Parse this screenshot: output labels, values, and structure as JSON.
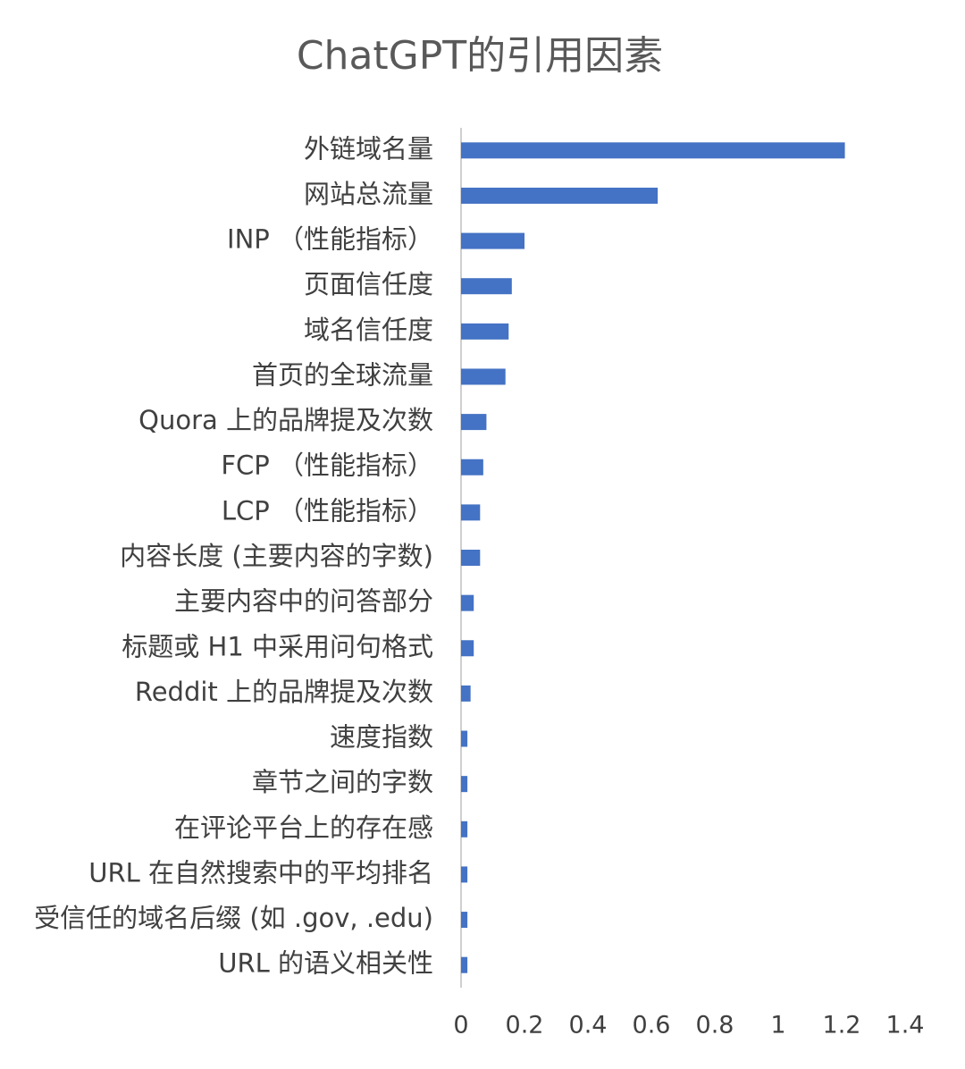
{
  "chart_data": {
    "type": "barh",
    "title": "ChatGPT的引用因素",
    "categories": [
      "外链域名量",
      "网站总流量",
      "INP （性能指标）",
      "页面信任度",
      "域名信任度",
      "首页的全球流量",
      "Quora 上的品牌提及次数",
      "FCP （性能指标）",
      "LCP （性能指标）",
      "内容长度 (主要内容的字数)",
      "主要内容中的问答部分",
      "标题或 H1 中采用问句格式",
      "Reddit 上的品牌提及次数",
      "速度指数",
      "章节之间的字数",
      "在评论平台上的存在感",
      "URL 在自然搜索中的平均排名",
      "受信任的域名后缀 (如 .gov, .edu)",
      "URL 的语义相关性"
    ],
    "values": [
      1.21,
      0.62,
      0.2,
      0.16,
      0.15,
      0.14,
      0.08,
      0.07,
      0.06,
      0.06,
      0.04,
      0.04,
      0.03,
      0.02,
      0.02,
      0.02,
      0.02,
      0.02,
      0.02
    ],
    "color": "#4472c4",
    "xlim": [
      0,
      1.4
    ],
    "xticks": [
      0,
      0.2,
      0.4,
      0.6,
      0.8,
      1,
      1.2,
      1.4
    ],
    "grid": false
  }
}
